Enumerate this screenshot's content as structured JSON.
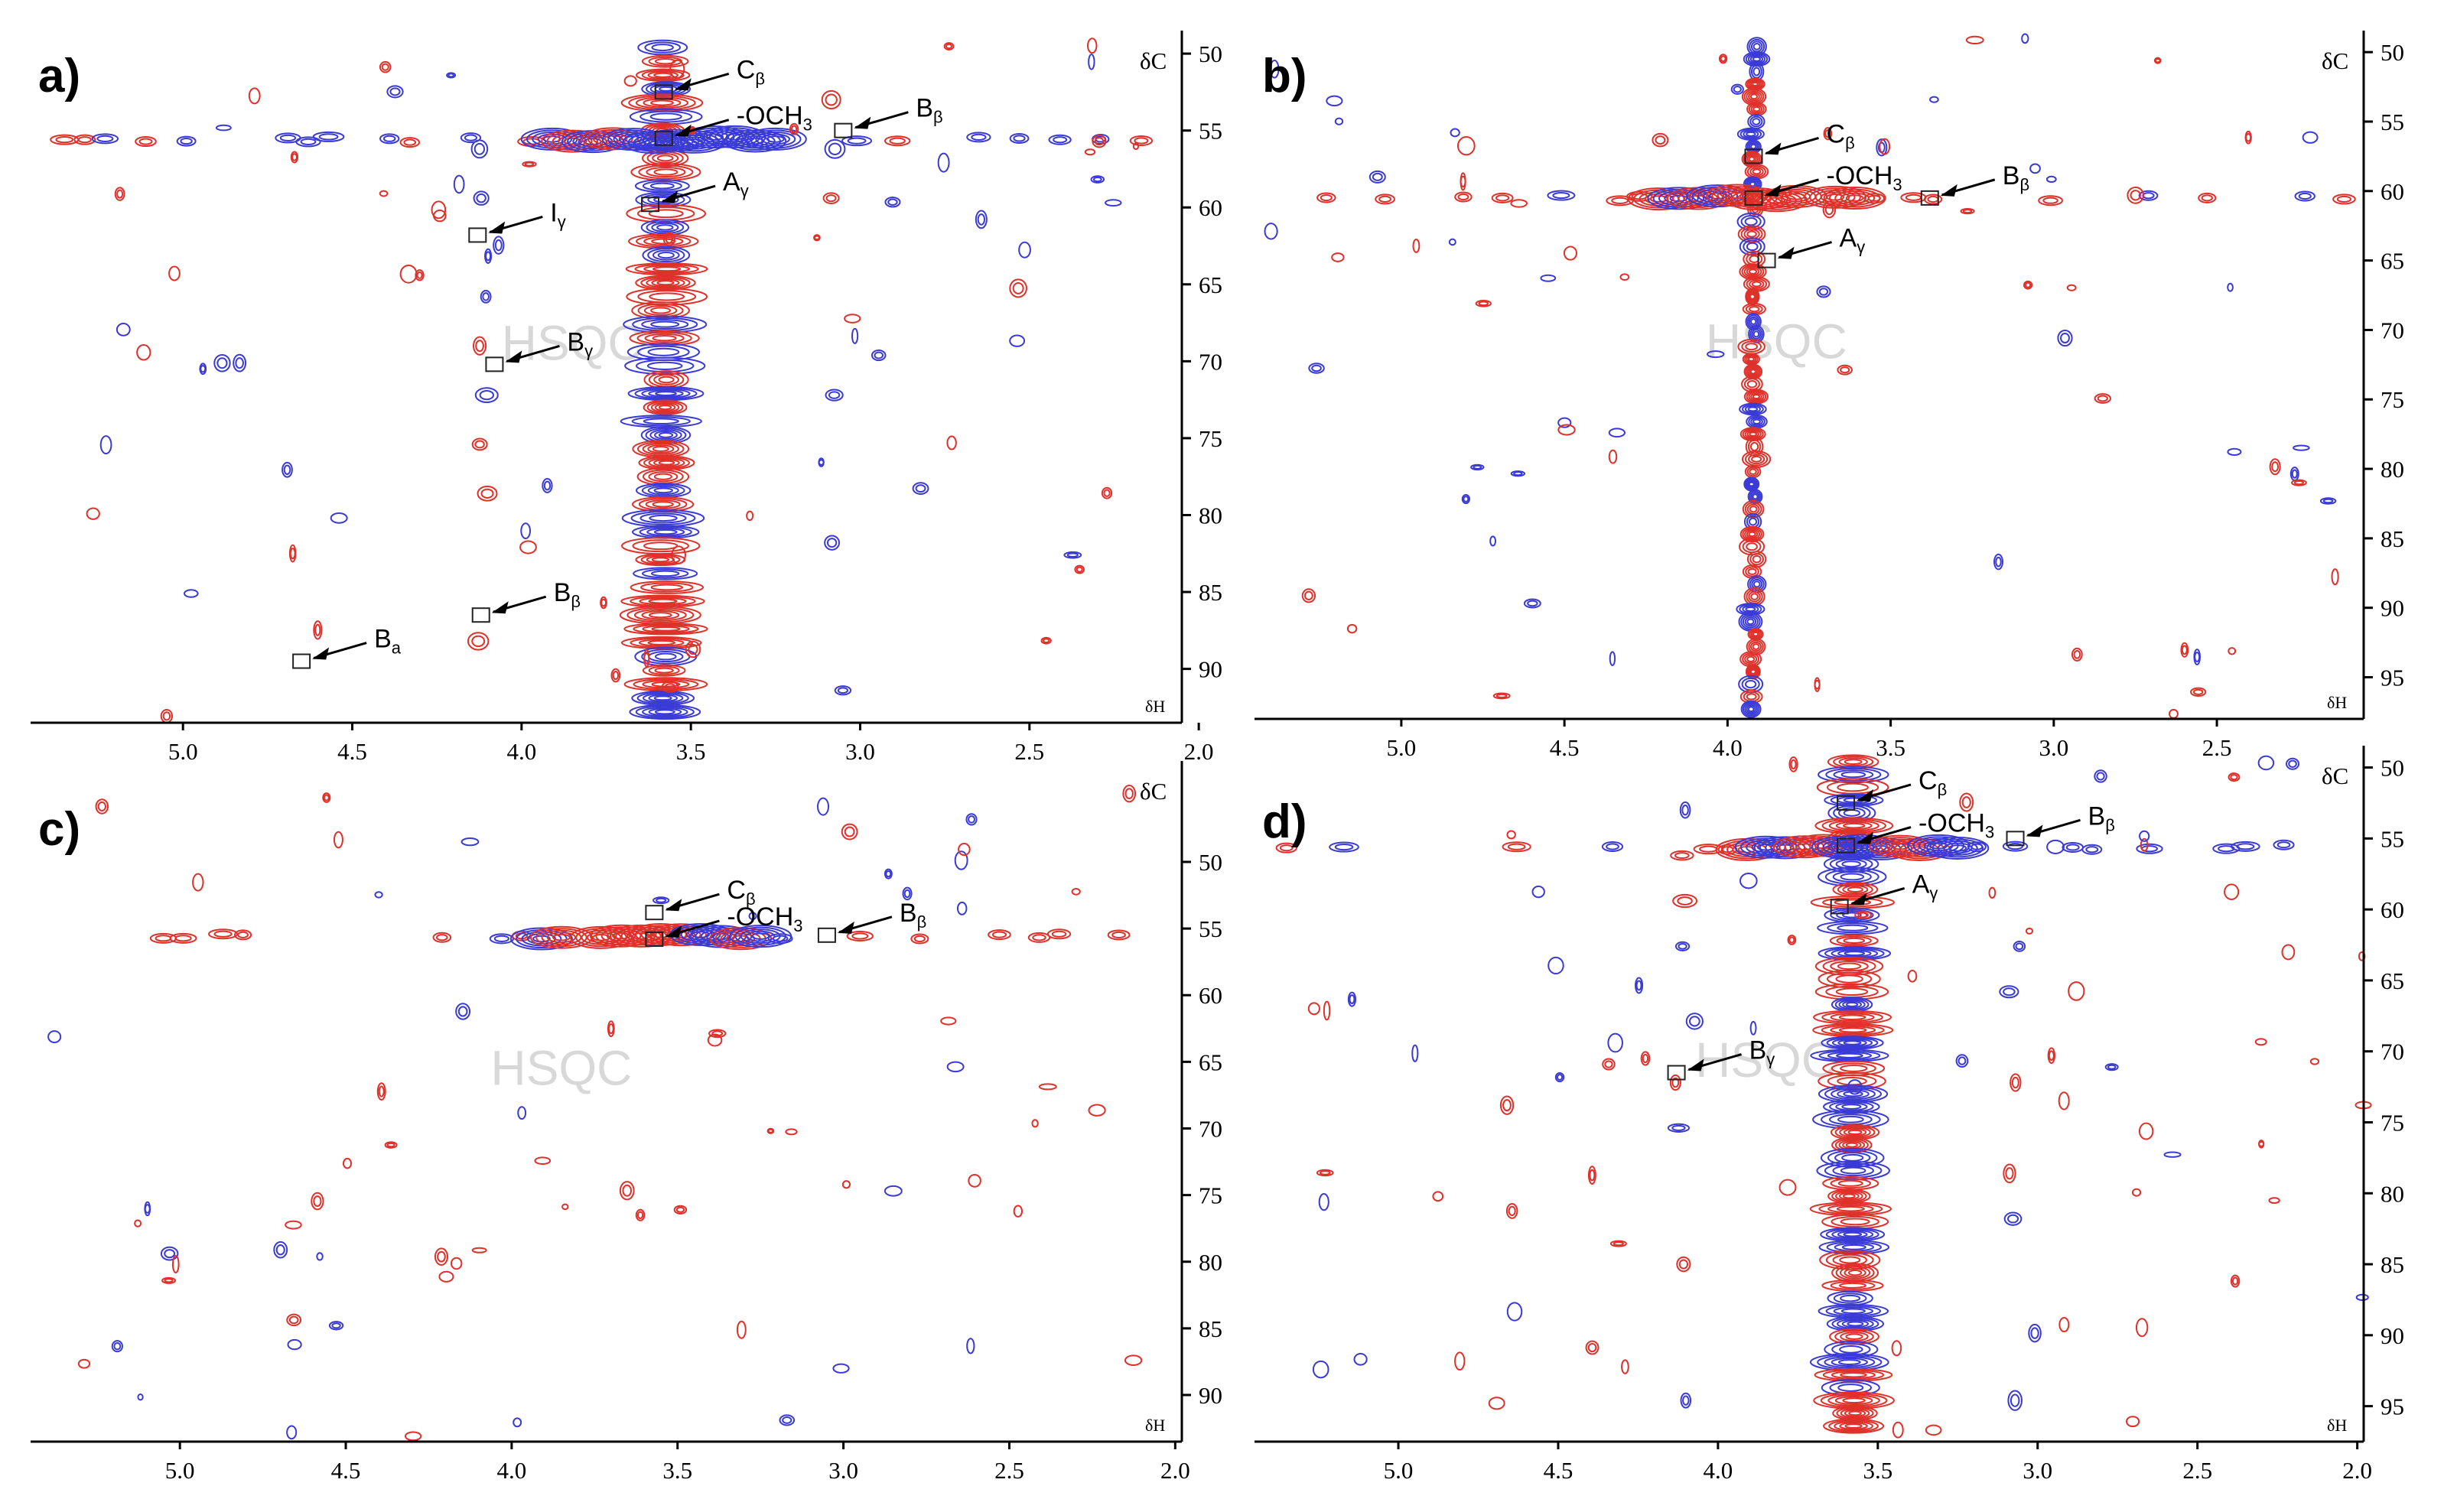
{
  "colors": {
    "positive": "#e0302a",
    "negative": "#3a3ad6",
    "axis": "#000000",
    "watermark": "#d8d8d8"
  },
  "chart_data": [
    {
      "type": "heatmap",
      "panel": "a)",
      "watermark": "HSQC",
      "xlabel": "δH",
      "ylabel": "δC",
      "x_ticks": [
        5.0,
        4.5,
        4.0,
        3.5,
        3.0,
        2.5,
        2.0
      ],
      "y_ticks": [
        50,
        55,
        60,
        65,
        70,
        75,
        80,
        85,
        90
      ],
      "xlim": [
        5.45,
        2.05
      ],
      "ylim": [
        49,
        93.5
      ],
      "y_reversed": true,
      "annotations": [
        {
          "label": "C",
          "sub": "β",
          "x": 3.58,
          "y": 52.5
        },
        {
          "label": "B",
          "sub": "β",
          "x": 3.05,
          "y": 55.0
        },
        {
          "label": "-OCH",
          "sub": "3",
          "x": 3.58,
          "y": 55.5
        },
        {
          "label": "A",
          "sub": "γ",
          "x": 3.62,
          "y": 59.8
        },
        {
          "label": "I",
          "sub": "γ",
          "x": 4.13,
          "y": 61.8
        },
        {
          "label": "B",
          "sub": "γ",
          "x": 4.08,
          "y": 70.2
        },
        {
          "label": "B",
          "sub": "β",
          "x": 4.12,
          "y": 86.5
        },
        {
          "label": "B",
          "sub": "a",
          "x": 4.65,
          "y": 89.5
        }
      ]
    },
    {
      "type": "heatmap",
      "panel": "b)",
      "watermark": "HSQC",
      "xlabel": "δH",
      "ylabel": "δC",
      "x_ticks": [
        5.0,
        4.5,
        4.0,
        3.5,
        3.0,
        2.5
      ],
      "y_ticks": [
        50,
        55,
        60,
        65,
        70,
        75,
        80,
        85,
        90,
        95
      ],
      "xlim": [
        5.45,
        2.05
      ],
      "ylim": [
        49,
        98
      ],
      "y_reversed": true,
      "annotations": [
        {
          "label": "C",
          "sub": "β",
          "x": 3.92,
          "y": 57.5
        },
        {
          "label": "B",
          "sub": "β",
          "x": 3.38,
          "y": 60.5
        },
        {
          "label": "-OCH",
          "sub": "3",
          "x": 3.92,
          "y": 60.5
        },
        {
          "label": "A",
          "sub": "γ",
          "x": 3.88,
          "y": 65.0
        }
      ]
    },
    {
      "type": "heatmap",
      "panel": "c)",
      "watermark": "HSQC",
      "xlabel": "δH",
      "ylabel": "δC",
      "x_ticks": [
        5.0,
        4.5,
        4.0,
        3.5,
        3.0,
        2.5,
        2.0
      ],
      "y_ticks": [
        50,
        55,
        60,
        65,
        70,
        75,
        80,
        85,
        90
      ],
      "xlim": [
        5.45,
        1.98
      ],
      "ylim": [
        43,
        93.5
      ],
      "y_reversed": true,
      "annotations": [
        {
          "label": "C",
          "sub": "β",
          "x": 3.57,
          "y": 53.8
        },
        {
          "label": "B",
          "sub": "β",
          "x": 3.05,
          "y": 55.5
        },
        {
          "label": "-OCH",
          "sub": "3",
          "x": 3.57,
          "y": 55.8
        }
      ]
    },
    {
      "type": "heatmap",
      "panel": "d)",
      "watermark": "HSQC",
      "xlabel": "δH",
      "ylabel": "δC",
      "x_ticks": [
        5.0,
        4.5,
        4.0,
        3.5,
        3.0,
        2.5,
        2.0
      ],
      "y_ticks": [
        50,
        55,
        60,
        65,
        70,
        75,
        80,
        85,
        90,
        95
      ],
      "xlim": [
        5.45,
        1.98
      ],
      "ylim": [
        49,
        97.5
      ],
      "y_reversed": true,
      "annotations": [
        {
          "label": "C",
          "sub": "β",
          "x": 3.6,
          "y": 52.5
        },
        {
          "label": "B",
          "sub": "β",
          "x": 3.07,
          "y": 55.0
        },
        {
          "label": "-OCH",
          "sub": "3",
          "x": 3.6,
          "y": 55.5
        },
        {
          "label": "A",
          "sub": "γ",
          "x": 3.62,
          "y": 59.8
        },
        {
          "label": "B",
          "sub": "γ",
          "x": 4.13,
          "y": 71.5
        }
      ]
    }
  ]
}
